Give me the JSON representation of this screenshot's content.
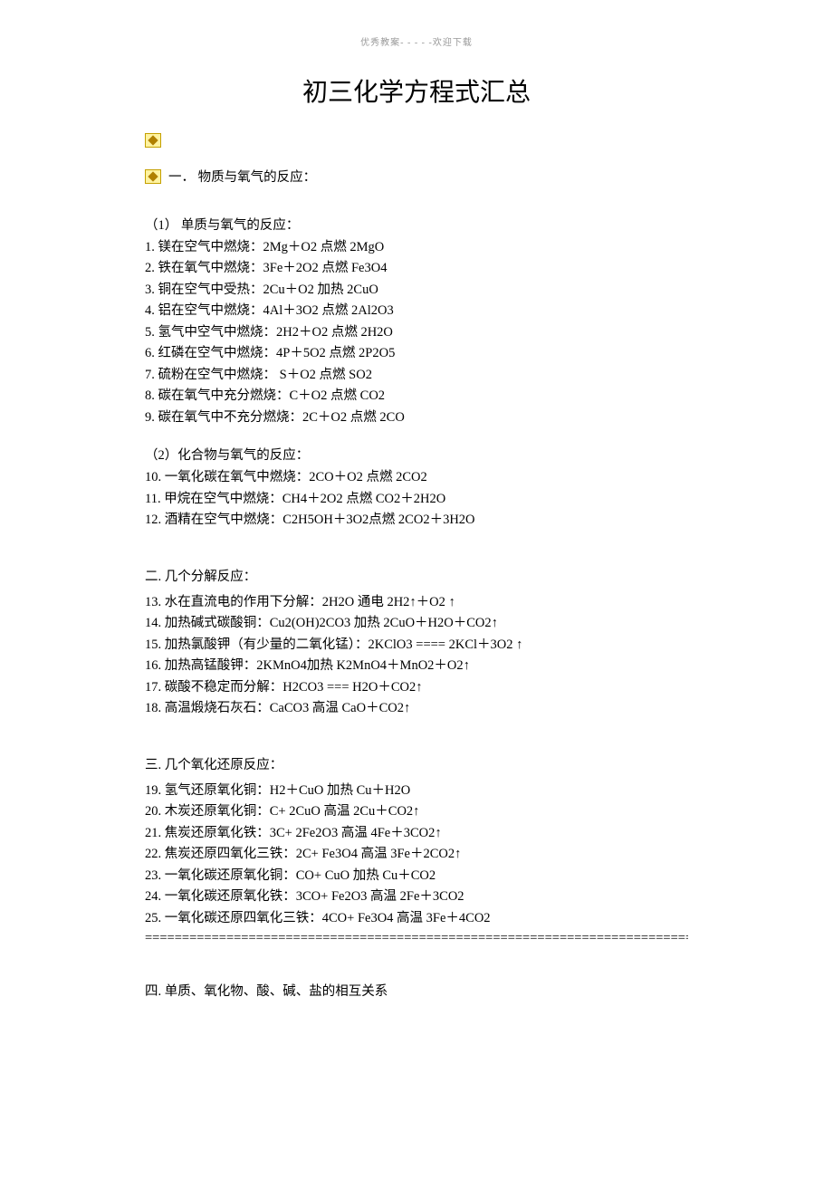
{
  "header_note": "优秀教案- - - - -欢迎下载",
  "title": "初三化学方程式汇总",
  "section1": {
    "head": "一．  物质与氧气的反应：",
    "sub1": "（1） 单质与氧气的反应：",
    "items1": [
      "1.  镁在空气中燃烧：2Mg＋O2  点燃 2MgO",
      "2.  铁在氧气中燃烧：3Fe＋2O2   点燃 Fe3O4",
      "3.  铜在空气中受热：2Cu＋O2   加热 2CuO",
      "4.  铝在空气中燃烧：4Al＋3O2   点燃 2Al2O3",
      "5.  氢气中空气中燃烧：2H2＋O2  点燃 2H2O",
      "6.  红磷在空气中燃烧：4P＋5O2   点燃 2P2O5",
      "7.  硫粉在空气中燃烧： S＋O2    点燃  SO2",
      "8.  碳在氧气中充分燃烧：C＋O2  点燃 CO2",
      "9.  碳在氧气中不充分燃烧：2C＋O2   点燃 2CO"
    ],
    "sub2": "（2）化合物与氧气的反应：",
    "items2": [
      "10.  一氧化碳在氧气中燃烧：2CO＋O2  点燃 2CO2",
      "11.  甲烷在空气中燃烧：CH4＋2O2  点燃 CO2＋2H2O",
      "12.  酒精在空气中燃烧：C2H5OH＋3O2点燃 2CO2＋3H2O"
    ]
  },
  "section2": {
    "head": "二.  几个分解反应：",
    "items": [
      "13.  水在直流电的作用下分解：2H2O 通电  2H2↑＋O2 ↑",
      "14.  加热碱式碳酸铜：Cu2(OH)2CO3 加热  2CuO＋H2O＋CO2↑",
      "15.  加热氯酸钾（有少量的二氧化锰）：2KClO3 ==== 2KCl＋3O2 ↑",
      "16.  加热高锰酸钾：2KMnO4加热  K2MnO4＋MnO2＋O2↑",
      "17.  碳酸不稳定而分解：H2CO3 === H2O＋CO2↑",
      "18.  高温煅烧石灰石：CaCO3 高温  CaO＋CO2↑"
    ]
  },
  "section3": {
    "head": "三.  几个氧化还原反应：",
    "items": [
      "19.  氢气还原氧化铜：H2＋CuO  加热 Cu＋H2O",
      "20.  木炭还原氧化铜：C+ 2CuO 高温  2Cu＋CO2↑",
      "21.  焦炭还原氧化铁：3C+ 2Fe2O3 高温  4Fe＋3CO2↑",
      "22.  焦炭还原四氧化三铁：2C+ Fe3O4  高温  3Fe＋2CO2↑",
      "23.  一氧化碳还原氧化铜：CO+ CuO 加热 Cu＋CO2",
      "24.  一氧化碳还原氧化铁：3CO+ Fe2O3 高温 2Fe＋3CO2",
      "25.  一氧化碳还原四氧化三铁：4CO+ Fe3O4 高温 3Fe＋4CO2"
    ]
  },
  "divider": "============================================================================",
  "section4": {
    "head": "四.  单质、氧化物、酸、碱、盐的相互关系"
  }
}
